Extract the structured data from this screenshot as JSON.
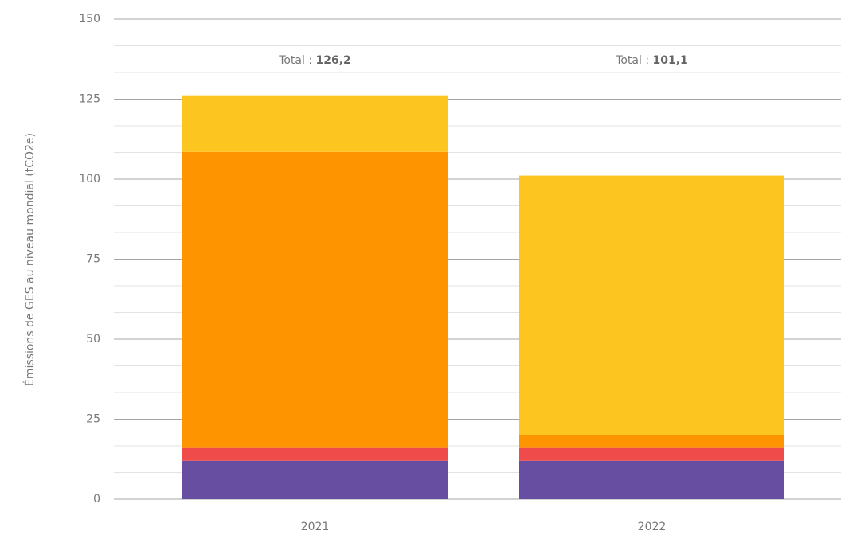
{
  "chart_data": {
    "type": "stacked_bar",
    "y_label": "Émissions de GES au niveau mondial (tCO2e)",
    "categories": [
      "2021",
      "2022"
    ],
    "series": [
      {
        "color": "#674ea0",
        "values": [
          12,
          12
        ]
      },
      {
        "color": "#ef4b4b",
        "values": [
          4,
          4
        ]
      },
      {
        "color": "#fd9400",
        "values": [
          92.5,
          4.1
        ]
      },
      {
        "color": "#fdc51f",
        "values": [
          17.7,
          81
        ]
      }
    ],
    "total_prefix": "Total : ",
    "totals": [
      126.2,
      101.1
    ],
    "total_labels": [
      "126,2",
      "101,1"
    ],
    "ylim": [
      0,
      150
    ],
    "yticks": [
      0,
      25,
      50,
      75,
      100,
      125,
      150
    ],
    "minor_yticks": [
      8.33,
      16.67,
      33.33,
      41.67,
      58.33,
      66.67,
      83.33,
      91.67,
      108.33,
      116.67,
      133.33,
      141.67
    ],
    "grid": true
  }
}
